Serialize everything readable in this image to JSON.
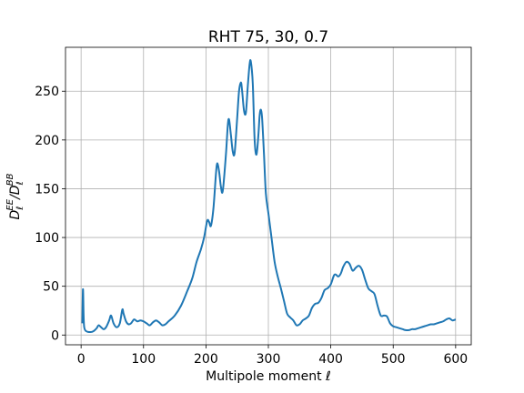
{
  "chart_data": {
    "type": "line",
    "title": "RHT 75, 30, 0.7",
    "xlabel": "Multipole moment ℓ",
    "ylabel_main": "D",
    "ylabel_sub1": "ℓ",
    "ylabel_sup1": "EE",
    "ylabel_sep": "/D",
    "ylabel_sub2": "ℓ",
    "ylabel_sup2": "BB",
    "xlim": [
      -25,
      625
    ],
    "ylim": [
      -10,
      295
    ],
    "xticks": [
      0,
      100,
      200,
      300,
      400,
      500,
      600
    ],
    "yticks": [
      0,
      50,
      100,
      150,
      200,
      250
    ],
    "grid": true,
    "series": [
      {
        "color": "#1f77b4",
        "points": [
          [
            2,
            12
          ],
          [
            3,
            47
          ],
          [
            4,
            20
          ],
          [
            5,
            8
          ],
          [
            8,
            4
          ],
          [
            15,
            3
          ],
          [
            20,
            4
          ],
          [
            25,
            7
          ],
          [
            28,
            10
          ],
          [
            32,
            8
          ],
          [
            36,
            6
          ],
          [
            40,
            8
          ],
          [
            45,
            15
          ],
          [
            48,
            20
          ],
          [
            52,
            12
          ],
          [
            57,
            8
          ],
          [
            62,
            12
          ],
          [
            66,
            26
          ],
          [
            68,
            22
          ],
          [
            72,
            14
          ],
          [
            76,
            11
          ],
          [
            80,
            12
          ],
          [
            85,
            16
          ],
          [
            90,
            14
          ],
          [
            95,
            15
          ],
          [
            100,
            14
          ],
          [
            105,
            12
          ],
          [
            110,
            10
          ],
          [
            115,
            13
          ],
          [
            120,
            15
          ],
          [
            125,
            13
          ],
          [
            130,
            10
          ],
          [
            135,
            11
          ],
          [
            140,
            14
          ],
          [
            150,
            20
          ],
          [
            160,
            30
          ],
          [
            170,
            45
          ],
          [
            178,
            58
          ],
          [
            185,
            75
          ],
          [
            192,
            88
          ],
          [
            197,
            100
          ],
          [
            202,
            117
          ],
          [
            205,
            116
          ],
          [
            208,
            112
          ],
          [
            212,
            130
          ],
          [
            216,
            165
          ],
          [
            218,
            176
          ],
          [
            221,
            168
          ],
          [
            224,
            152
          ],
          [
            227,
            148
          ],
          [
            232,
            185
          ],
          [
            235,
            215
          ],
          [
            237,
            221
          ],
          [
            240,
            205
          ],
          [
            243,
            188
          ],
          [
            246,
            187
          ],
          [
            250,
            222
          ],
          [
            253,
            250
          ],
          [
            256,
            259
          ],
          [
            258,
            250
          ],
          [
            261,
            230
          ],
          [
            264,
            228
          ],
          [
            267,
            255
          ],
          [
            270,
            278
          ],
          [
            272,
            280
          ],
          [
            275,
            258
          ],
          [
            278,
            200
          ],
          [
            281,
            185
          ],
          [
            284,
            205
          ],
          [
            286,
            225
          ],
          [
            288,
            231
          ],
          [
            290,
            222
          ],
          [
            293,
            185
          ],
          [
            296,
            145
          ],
          [
            300,
            125
          ],
          [
            305,
            100
          ],
          [
            310,
            75
          ],
          [
            315,
            60
          ],
          [
            320,
            48
          ],
          [
            325,
            35
          ],
          [
            330,
            22
          ],
          [
            335,
            18
          ],
          [
            340,
            15
          ],
          [
            345,
            10
          ],
          [
            350,
            11
          ],
          [
            355,
            15
          ],
          [
            360,
            17
          ],
          [
            365,
            20
          ],
          [
            370,
            28
          ],
          [
            375,
            32
          ],
          [
            380,
            33
          ],
          [
            385,
            38
          ],
          [
            390,
            46
          ],
          [
            395,
            48
          ],
          [
            400,
            52
          ],
          [
            405,
            61
          ],
          [
            408,
            62
          ],
          [
            412,
            60
          ],
          [
            416,
            63
          ],
          [
            420,
            70
          ],
          [
            425,
            75
          ],
          [
            430,
            73
          ],
          [
            435,
            66
          ],
          [
            440,
            69
          ],
          [
            445,
            71
          ],
          [
            450,
            67
          ],
          [
            455,
            57
          ],
          [
            460,
            48
          ],
          [
            465,
            45
          ],
          [
            470,
            42
          ],
          [
            475,
            30
          ],
          [
            480,
            20
          ],
          [
            485,
            20
          ],
          [
            490,
            19
          ],
          [
            495,
            12
          ],
          [
            500,
            9
          ],
          [
            505,
            8
          ],
          [
            510,
            7
          ],
          [
            515,
            6
          ],
          [
            520,
            5
          ],
          [
            525,
            5
          ],
          [
            530,
            6
          ],
          [
            535,
            6
          ],
          [
            540,
            7
          ],
          [
            545,
            8
          ],
          [
            550,
            9
          ],
          [
            555,
            10
          ],
          [
            560,
            11
          ],
          [
            565,
            11
          ],
          [
            570,
            12
          ],
          [
            575,
            13
          ],
          [
            580,
            14
          ],
          [
            585,
            16
          ],
          [
            590,
            17
          ],
          [
            595,
            15
          ],
          [
            600,
            16
          ]
        ]
      }
    ]
  }
}
